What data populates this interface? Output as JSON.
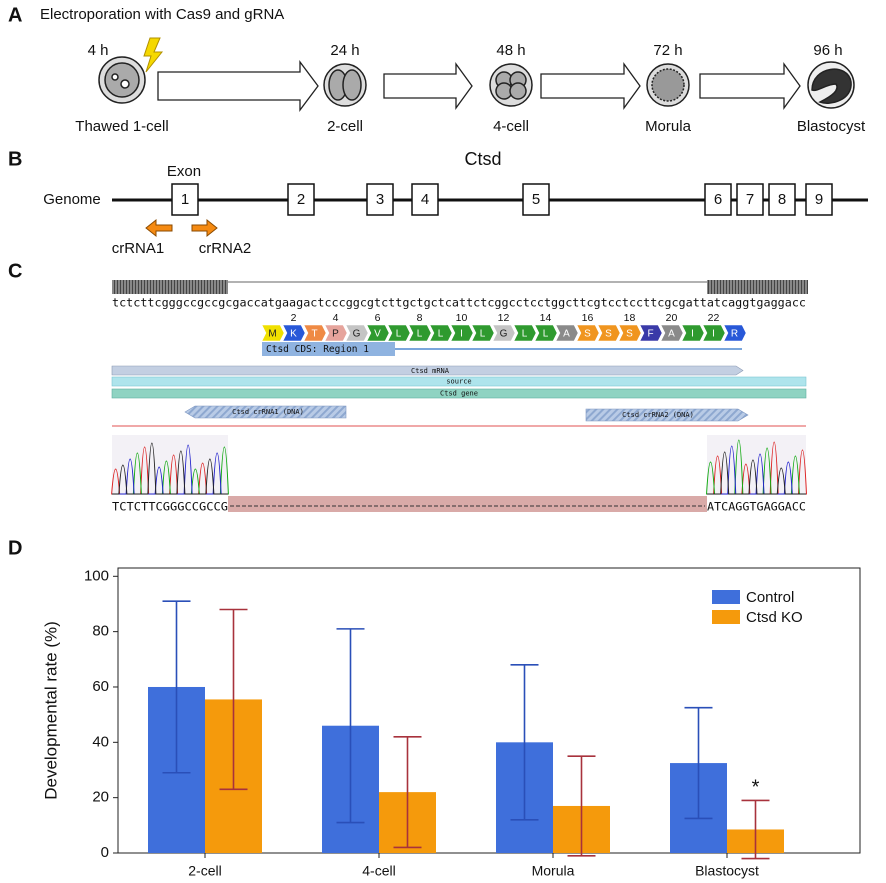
{
  "panel_labels": [
    "A",
    "B",
    "C",
    "D"
  ],
  "panel_a": {
    "title": "Electroporation with Cas9 and gRNA",
    "stages": [
      {
        "time": "4 h",
        "label": "Thawed 1-cell"
      },
      {
        "time": "24 h",
        "label": "2-cell"
      },
      {
        "time": "48 h",
        "label": "4-cell"
      },
      {
        "time": "72 h",
        "label": "Morula"
      },
      {
        "time": "96 h",
        "label": "Blastocyst"
      }
    ]
  },
  "panel_b": {
    "gene": "Ctsd",
    "exon_label": "Exon",
    "track_label": "Genome",
    "exons": [
      "1",
      "2",
      "3",
      "4",
      "5",
      "6",
      "7",
      "8",
      "9"
    ],
    "guides": [
      "crRNA1",
      "crRNA2"
    ]
  },
  "panel_c": {
    "sequence": "tctcttcgggccgccgcgaccatgaagactcccggcgtcttgctgctcattctcggcctcctggcttcgtcctccttcgcgattatcaggtgaggacc",
    "residue_numbers": [
      "2",
      "4",
      "6",
      "8",
      "10",
      "12",
      "14",
      "16",
      "18",
      "20",
      "22"
    ],
    "residues": [
      "M",
      "K",
      "T",
      "P",
      "G",
      "V",
      "L",
      "L",
      "L",
      "I",
      "L",
      "G",
      "L",
      "L",
      "A",
      "S",
      "S",
      "S",
      "F",
      "A",
      "I",
      "I",
      "R"
    ],
    "cds_label": "Ctsd CDS: Region 1",
    "mrna_label": "Ctsd mRNA",
    "source_label": "source",
    "gene_label": "Ctsd gene",
    "crrna1_label": "Ctsd crRNA1 (DNA)",
    "crrna2_label": "Ctsd crRNA2 (DNA)",
    "read_left": "TCTCTTCGGGCCGCCG",
    "read_right": "ATCAGGTGAGGACC"
  },
  "chart_data": {
    "type": "bar",
    "ylabel": "Developmental rate (%)",
    "categories": [
      "2-cell",
      "4-cell",
      "Morula",
      "Blastocyst"
    ],
    "series": [
      {
        "name": "Control",
        "color": "#3f6fdb",
        "error_color": "#2a4fb8",
        "values": [
          60,
          46,
          40,
          32.5
        ],
        "errors": [
          31,
          35,
          28,
          20
        ]
      },
      {
        "name": "Ctsd KO",
        "color": "#f59a0c",
        "error_color": "#a8323c",
        "values": [
          55.5,
          22,
          17,
          8.5
        ],
        "errors": [
          32.5,
          20,
          18,
          10.5
        ]
      }
    ],
    "annotations": [
      {
        "text": "*",
        "category": "Blastocyst",
        "series": "Ctsd KO"
      }
    ],
    "ylim": [
      0,
      103
    ],
    "yticks": [
      0,
      20,
      40,
      60,
      80,
      100
    ],
    "legend": "upper right"
  }
}
